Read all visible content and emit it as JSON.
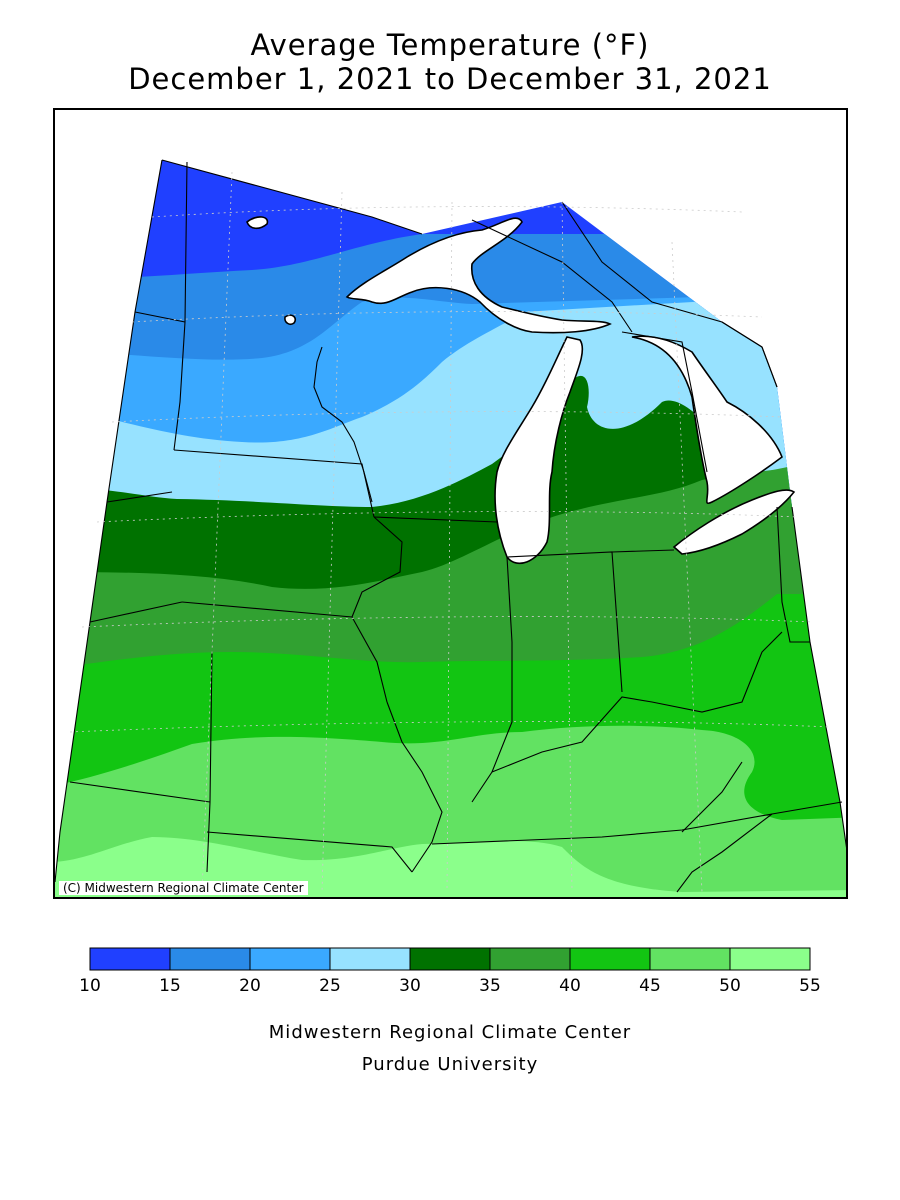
{
  "title": {
    "line1": "Average Temperature (°F)",
    "line2": "December 1, 2021 to December 31, 2021"
  },
  "map": {
    "copyright": "(C) Midwestern Regional Climate Center",
    "water_color": "#ffffff",
    "boundary_color": "#000000"
  },
  "legend": {
    "unit": "°F",
    "bins": [
      {
        "min": 10,
        "max": 15,
        "color": "#2040ff"
      },
      {
        "min": 15,
        "max": 20,
        "color": "#2a8ae8"
      },
      {
        "min": 20,
        "max": 25,
        "color": "#3aa9ff"
      },
      {
        "min": 25,
        "max": 30,
        "color": "#97e2ff"
      },
      {
        "min": 30,
        "max": 35,
        "color": "#007200"
      },
      {
        "min": 35,
        "max": 40,
        "color": "#31a131"
      },
      {
        "min": 40,
        "max": 45,
        "color": "#12c512"
      },
      {
        "min": 45,
        "max": 50,
        "color": "#62e262"
      },
      {
        "min": 50,
        "max": 55,
        "color": "#8bff8b"
      }
    ],
    "labels": [
      "10",
      "15",
      "20",
      "25",
      "30",
      "35",
      "40",
      "45",
      "50",
      "55"
    ]
  },
  "credits": {
    "line1": "Midwestern Regional Climate Center",
    "line2": "Purdue University"
  }
}
